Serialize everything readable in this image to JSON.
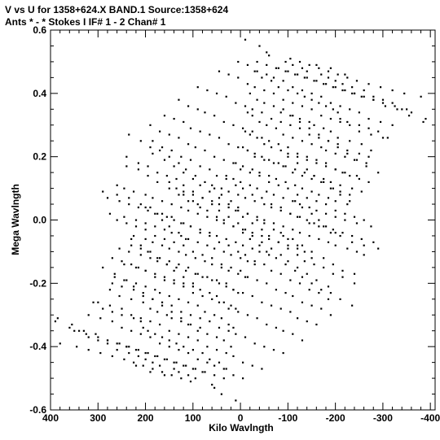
{
  "header": {
    "line1": "V vs U for 1358+624.X BAND.1   Source:1358+624",
    "line2": "Ants * - *     Stokes I  IF# 1 - 2  Chan# 1"
  },
  "chart_data": {
    "type": "scatter",
    "title": "V vs U for 1358+624.X BAND.1   Source:1358+624",
    "subtitle": "Ants * - *     Stokes I  IF# 1 - 2  Chan# 1",
    "xlabel": "Kilo Wavlngth",
    "ylabel": "Mega Wavlngth",
    "xlim": [
      400,
      -410
    ],
    "ylim": [
      -0.6,
      0.6
    ],
    "x_ticks": [
      "400",
      "300",
      "200",
      "100",
      "0",
      "-100",
      "-200",
      "-300",
      "-400"
    ],
    "y_ticks": [
      "0.6",
      "0.4",
      "0.2",
      "0.0",
      "-0.2",
      "-0.4",
      "-0.6"
    ],
    "x_tick_values": [
      400,
      300,
      200,
      100,
      0,
      -100,
      -200,
      -300,
      -400
    ],
    "y_tick_values": [
      0.6,
      0.4,
      0.2,
      0.0,
      -0.2,
      -0.4,
      -0.6
    ],
    "grid": false,
    "legend": "none",
    "point_color": "#000000",
    "series": [
      {
        "x": [
          -10,
          -40,
          -55,
          -60,
          -95,
          -110,
          -130,
          -140,
          -160,
          -170,
          -185,
          -190,
          -200,
          -215,
          -220,
          -235,
          -240,
          -260,
          -280,
          -300,
          -320,
          -340,
          -360,
          -390,
          -30,
          -45,
          -65,
          -80,
          -100,
          -120,
          -135,
          -150,
          -165,
          -180,
          -195,
          -205,
          -210,
          -225,
          -250,
          -270,
          -290,
          -310,
          -20,
          -35,
          -50,
          -70,
          -85,
          -105,
          -125,
          -145,
          -155,
          -175,
          -190,
          -205,
          -230,
          -255,
          -275,
          -15,
          -25,
          -40,
          -55,
          -75,
          -90,
          -110,
          -130,
          -150,
          -170,
          -180,
          -200,
          -220,
          -240,
          -265,
          -10,
          -20,
          -35,
          -50,
          -65,
          -85,
          -100,
          -120,
          -140,
          -160,
          -180,
          -200,
          -215,
          -230,
          -250,
          -270,
          -5,
          -15,
          -30,
          -45,
          -60,
          -80,
          -95,
          -115,
          -135,
          -155,
          -175,
          -190,
          -210,
          -235,
          -255,
          10,
          -5,
          -25,
          -40,
          -60,
          -75,
          -95,
          -115,
          -130,
          -150,
          -165,
          -185,
          -200,
          -225,
          30,
          15,
          0,
          -20,
          -35,
          -55,
          -70,
          -90,
          -110,
          -125,
          -145,
          -160,
          -180,
          -200,
          -220,
          -245,
          -275,
          60,
          40,
          25,
          5,
          -10,
          -30,
          -50,
          -65,
          -85,
          -105,
          -120,
          -140,
          -155,
          -175,
          -195,
          -215,
          -235,
          -255,
          -280,
          120,
          100,
          80,
          60,
          45,
          25,
          5,
          -15,
          -35,
          -50,
          -70,
          -90,
          -110,
          -125,
          -145,
          -165,
          -185,
          -200,
          -225,
          -245,
          -260,
          185,
          160,
          140,
          120,
          100,
          85,
          65,
          45,
          25,
          10,
          -5,
          -25,
          -45,
          -60,
          -80,
          -100,
          -120,
          -135,
          -155,
          -175,
          -195,
          -215,
          -240,
          240,
          215,
          195,
          175,
          150,
          130,
          110,
          90,
          70,
          50,
          35,
          15,
          -5,
          -20,
          -40,
          -55,
          -75,
          -95,
          -115,
          -130,
          -150,
          -170,
          -190,
          -210,
          -235,
          290,
          260,
          235,
          210,
          190,
          165,
          145,
          125,
          105,
          85,
          65,
          45,
          25,
          5,
          -10,
          -30,
          -50,
          -65,
          -85,
          -105,
          -125,
          -145,
          -165,
          -185,
          260,
          240,
          220,
          200,
          180,
          160,
          140,
          120,
          100,
          80,
          60,
          40,
          20,
          0,
          -15,
          -35,
          -55,
          -75,
          -95,
          -110,
          -130,
          -150,
          -170,
          -190,
          230,
          210,
          190,
          170,
          150,
          130,
          110,
          90,
          70,
          50,
          30,
          15,
          -5,
          -25,
          -45,
          -65,
          -85,
          -105,
          -120,
          -140,
          -160,
          245,
          220,
          200,
          180,
          160,
          140,
          120,
          100,
          80,
          60,
          45,
          25,
          5,
          -15,
          -35,
          -55,
          -75,
          -90,
          -110,
          -130,
          270,
          250,
          225,
          205,
          185,
          165,
          145,
          125,
          105,
          85,
          65,
          45,
          25,
          10,
          -10,
          -30,
          -50,
          -70,
          -90,
          300,
          275,
          250,
          230,
          210,
          190,
          170,
          150,
          130,
          110,
          90,
          70,
          50,
          30,
          15,
          -5,
          -25,
          -45,
          320,
          295,
          270,
          250,
          230,
          210,
          190,
          170,
          150,
          130,
          110,
          90,
          70,
          55,
          35,
          15,
          -5,
          350,
          325,
          300,
          280,
          255,
          235,
          215,
          195,
          175,
          155,
          135,
          115,
          95,
          75,
          55,
          35,
          385,
          355,
          330,
          305,
          280,
          260,
          240,
          220,
          200,
          180,
          160,
          140,
          120,
          100,
          80,
          380,
          345,
          320,
          295,
          270,
          245,
          225,
          205,
          185,
          165,
          145,
          125,
          105,
          290,
          265,
          245,
          225,
          205,
          185,
          165,
          145,
          125,
          110,
          90,
          230,
          210,
          195,
          175,
          155,
          140,
          120,
          100,
          200,
          180,
          165,
          150,
          130,
          115,
          150,
          135,
          120,
          100,
          85
        ],
        "y": [
          0.57,
          0.55,
          0.53,
          0.52,
          0.5,
          0.49,
          0.48,
          0.47,
          0.49,
          0.46,
          0.45,
          0.48,
          0.44,
          0.43,
          0.46,
          0.42,
          0.4,
          0.41,
          0.39,
          0.38,
          0.37,
          0.35,
          0.34,
          0.32,
          0.47,
          0.45,
          0.44,
          0.42,
          0.41,
          0.4,
          0.39,
          0.38,
          0.37,
          0.36,
          0.35,
          0.34,
          0.32,
          0.31,
          0.3,
          0.29,
          0.28,
          0.26,
          0.4,
          0.38,
          0.37,
          0.36,
          0.34,
          0.33,
          0.32,
          0.31,
          0.3,
          0.29,
          0.28,
          0.26,
          0.25,
          0.24,
          0.22,
          0.34,
          0.33,
          0.31,
          0.3,
          0.29,
          0.27,
          0.26,
          0.25,
          0.24,
          0.23,
          0.22,
          0.21,
          0.2,
          0.19,
          0.18,
          0.28,
          0.27,
          0.26,
          0.24,
          0.23,
          0.22,
          0.21,
          0.2,
          0.19,
          0.18,
          0.17,
          0.16,
          0.15,
          0.14,
          0.13,
          0.12,
          0.23,
          0.22,
          0.21,
          0.2,
          0.19,
          0.18,
          0.17,
          0.16,
          0.15,
          0.14,
          0.13,
          0.12,
          0.11,
          0.1,
          0.09,
          0.18,
          0.17,
          0.16,
          0.15,
          0.14,
          0.13,
          0.12,
          0.11,
          0.1,
          0.09,
          0.08,
          0.07,
          0.06,
          0.05,
          0.14,
          0.13,
          0.12,
          0.11,
          0.1,
          0.09,
          0.08,
          0.07,
          0.06,
          0.05,
          0.04,
          0.03,
          0.02,
          0.01,
          0.0,
          -0.01,
          -0.02,
          0.11,
          0.1,
          0.09,
          0.08,
          0.07,
          0.06,
          0.05,
          0.04,
          0.03,
          0.02,
          0.01,
          0.0,
          -0.01,
          -0.02,
          -0.03,
          -0.04,
          -0.05,
          -0.06,
          -0.07,
          0.09,
          0.08,
          0.07,
          0.06,
          0.05,
          0.04,
          0.03,
          0.02,
          0.01,
          0.0,
          -0.01,
          -0.02,
          -0.03,
          -0.04,
          -0.05,
          -0.06,
          -0.07,
          -0.08,
          -0.09,
          -0.1,
          -0.11,
          0.21,
          0.19,
          0.17,
          0.15,
          0.13,
          0.11,
          0.09,
          0.07,
          0.05,
          0.03,
          0.01,
          -0.01,
          -0.03,
          -0.05,
          -0.07,
          -0.09,
          -0.11,
          -0.13,
          -0.14,
          -0.15,
          -0.17,
          -0.18,
          -0.2,
          0.17,
          0.16,
          0.14,
          0.12,
          0.1,
          0.08,
          0.06,
          0.05,
          0.03,
          0.01,
          0.0,
          -0.02,
          -0.04,
          -0.06,
          -0.08,
          -0.1,
          -0.12,
          -0.14,
          -0.16,
          -0.18,
          -0.2,
          -0.22,
          -0.23,
          -0.25,
          -0.27,
          0.09,
          0.08,
          0.07,
          0.05,
          0.04,
          0.02,
          0.01,
          -0.01,
          -0.02,
          -0.04,
          -0.05,
          -0.07,
          -0.08,
          -0.1,
          -0.11,
          -0.13,
          -0.14,
          -0.16,
          -0.17,
          -0.19,
          -0.2,
          -0.22,
          -0.23,
          -0.25,
          0.0,
          -0.01,
          -0.02,
          -0.03,
          -0.05,
          -0.06,
          -0.07,
          -0.08,
          -0.1,
          -0.11,
          -0.12,
          -0.14,
          -0.15,
          -0.16,
          -0.18,
          -0.19,
          -0.2,
          -0.22,
          -0.23,
          -0.24,
          -0.26,
          -0.27,
          -0.28,
          -0.3,
          -0.08,
          -0.09,
          -0.1,
          -0.12,
          -0.13,
          -0.14,
          -0.15,
          -0.17,
          -0.18,
          -0.19,
          -0.2,
          -0.22,
          -0.23,
          -0.24,
          -0.26,
          -0.27,
          -0.28,
          -0.29,
          -0.31,
          -0.32,
          -0.33,
          -0.14,
          -0.15,
          -0.16,
          -0.18,
          -0.19,
          -0.2,
          -0.21,
          -0.23,
          -0.24,
          -0.25,
          -0.26,
          -0.28,
          -0.29,
          -0.3,
          -0.31,
          -0.33,
          -0.34,
          -0.35,
          -0.36,
          -0.38,
          -0.2,
          -0.21,
          -0.22,
          -0.24,
          -0.25,
          -0.26,
          -0.27,
          -0.29,
          -0.3,
          -0.31,
          -0.32,
          -0.34,
          -0.35,
          -0.36,
          -0.37,
          -0.39,
          -0.4,
          -0.41,
          -0.42,
          -0.26,
          -0.27,
          -0.28,
          -0.3,
          -0.31,
          -0.32,
          -0.33,
          -0.35,
          -0.36,
          -0.37,
          -0.38,
          -0.4,
          -0.41,
          -0.42,
          -0.43,
          -0.45,
          -0.46,
          -0.47,
          -0.3,
          -0.31,
          -0.32,
          -0.34,
          -0.35,
          -0.36,
          -0.37,
          -0.39,
          -0.4,
          -0.41,
          -0.42,
          -0.44,
          -0.45,
          -0.46,
          -0.47,
          -0.49,
          -0.5,
          -0.35,
          -0.36,
          -0.37,
          -0.38,
          -0.39,
          -0.4,
          -0.41,
          -0.42,
          -0.43,
          -0.44,
          -0.45,
          -0.46,
          -0.47,
          -0.48,
          -0.49,
          -0.5,
          -0.31,
          -0.33,
          -0.35,
          -0.36,
          -0.38,
          -0.39,
          -0.4,
          -0.41,
          -0.42,
          -0.43,
          -0.44,
          -0.45,
          -0.46,
          -0.47,
          -0.48,
          -0.39,
          -0.4,
          -0.41,
          -0.42,
          -0.43,
          -0.44,
          -0.45,
          -0.46,
          -0.47,
          -0.48,
          -0.49,
          -0.5,
          -0.51,
          -0.15,
          -0.17,
          -0.19,
          -0.21,
          -0.23,
          -0.25,
          -0.27,
          -0.29,
          -0.31,
          -0.33,
          -0.35,
          -0.06,
          -0.08,
          -0.1,
          -0.12,
          -0.14,
          -0.16,
          -0.18,
          -0.2,
          0.04,
          0.02,
          0.0,
          -0.02,
          -0.04,
          -0.06,
          0.12,
          0.1,
          0.08,
          0.06,
          0.04
        ]
      }
    ]
  }
}
